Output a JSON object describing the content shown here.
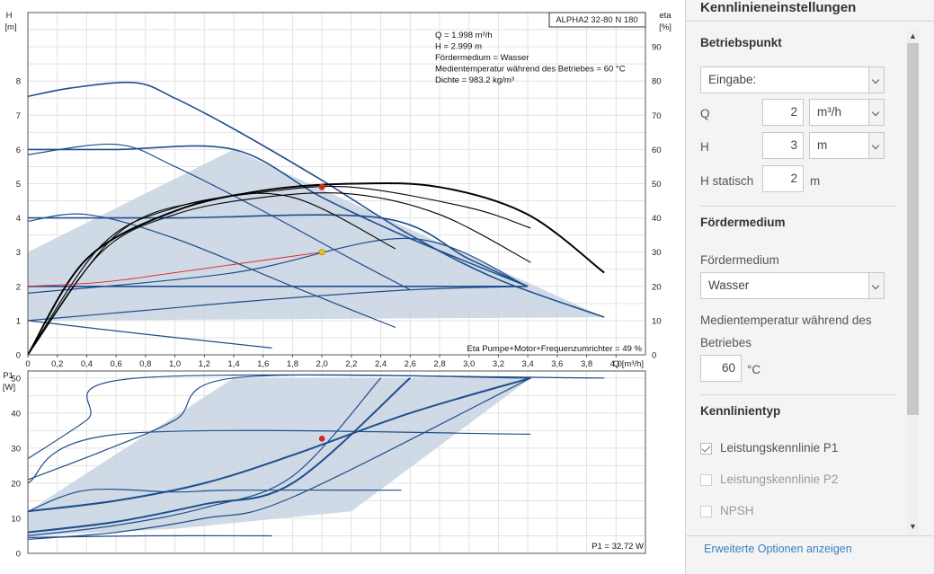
{
  "chart_data": [
    {
      "type": "line",
      "title": "ALPHA2 32-80 N 180",
      "xlabel": "Q [m³/h]",
      "ylabel": "H [m]",
      "ylabel_line1": "H",
      "ylabel_line2": "[m]",
      "y2label": "eta [%]",
      "y2label_line1": "eta",
      "y2label_line2": "[%]",
      "xlim": [
        0,
        4.2
      ],
      "ylim": [
        0,
        10
      ],
      "y2lim": [
        0,
        100
      ],
      "x_ticks": [
        "0",
        "0,2",
        "0,4",
        "0,6",
        "0,8",
        "1,0",
        "1,2",
        "1,4",
        "1,6",
        "1,8",
        "2,0",
        "2,2",
        "2,4",
        "2,6",
        "2,8",
        "3,0",
        "3,2",
        "3,4",
        "3,6",
        "3,8",
        "4,0"
      ],
      "y_ticks": [
        "0",
        "1",
        "2",
        "3",
        "4",
        "5",
        "6",
        "7",
        "8"
      ],
      "y2_ticks": [
        "0",
        "10",
        "20",
        "30",
        "40",
        "50",
        "60",
        "70",
        "80",
        "90"
      ],
      "grid": true,
      "info_lines": [
        "Q = 1.998 m³/h",
        "H = 2.999 m",
        "Fördermedium = Wasser",
        "Medientemperatur während des Betriebes = 60 °C",
        "Dichte = 983.2 kg/m³"
      ],
      "footnote": "Eta Pumpe+Motor+Frequenzumrichter = 49 %",
      "shaded_region": [
        [
          0,
          3.0
        ],
        [
          1.4,
          6.0
        ],
        [
          3.92,
          1.1
        ],
        [
          0,
          1.0
        ]
      ],
      "series": [
        {
          "role": "max curve",
          "x": [
            0,
            0.3,
            0.73,
            1.0,
            1.4,
            2.0,
            2.6,
            3.2,
            3.92
          ],
          "y": [
            7.55,
            7.8,
            7.95,
            7.5,
            6.6,
            5.1,
            3.5,
            2.2,
            1.1
          ]
        },
        {
          "role": "constant curve 6",
          "x": [
            0,
            0.6,
            1.4,
            2.0,
            2.6,
            3.4
          ],
          "y": [
            6.0,
            6.0,
            6.0,
            4.6,
            3.4,
            2.0
          ]
        },
        {
          "role": "proportional curve",
          "x": [
            0,
            0.6,
            1.0,
            1.6,
            2.2,
            2.6
          ],
          "y": [
            5.85,
            6.15,
            5.5,
            4.2,
            2.8,
            1.9
          ]
        },
        {
          "role": "constant curve 4",
          "x": [
            0,
            1.0,
            2.4,
            3.0,
            3.4
          ],
          "y": [
            4.0,
            4.0,
            4.0,
            2.8,
            2.0
          ]
        },
        {
          "role": "proportional curve 2",
          "x": [
            0,
            0.4,
            1.0,
            1.8,
            2.5
          ],
          "y": [
            3.9,
            4.1,
            3.4,
            2.0,
            0.8
          ]
        },
        {
          "role": "constant curve 2",
          "x": [
            0,
            1.4,
            3.4
          ],
          "y": [
            2.0,
            2.0,
            2.0
          ]
        },
        {
          "role": "proportional curve 3",
          "x": [
            0,
            1.4,
            2.6,
            3.4
          ],
          "y": [
            1.8,
            2.4,
            3.4,
            2.0
          ]
        },
        {
          "role": "min curve",
          "x": [
            0,
            0.8,
            1.6,
            2.6,
            3.4
          ],
          "y": [
            1.0,
            1.3,
            1.6,
            1.9,
            2.0
          ]
        },
        {
          "role": "low curve",
          "x": [
            0,
            0.8,
            1.66
          ],
          "y": [
            1.0,
            0.6,
            0.2
          ]
        },
        {
          "role": "efficiency max",
          "x": [
            0,
            0.4,
            1.0,
            1.6,
            2.2,
            2.8,
            3.4,
            3.92
          ],
          "y": [
            0,
            2.8,
            4.2,
            4.8,
            5.0,
            4.9,
            4.1,
            2.4
          ]
        },
        {
          "role": "efficiency 2",
          "x": [
            0,
            0.5,
            1.0,
            1.6,
            2.2,
            3.0,
            3.42
          ],
          "y": [
            0,
            3.2,
            4.3,
            4.75,
            4.9,
            4.3,
            3.7
          ]
        },
        {
          "role": "efficiency 3",
          "x": [
            0,
            0.5,
            1.0,
            1.6,
            2.2,
            2.8,
            3.42
          ],
          "y": [
            0,
            3.0,
            4.1,
            4.6,
            4.7,
            4.1,
            2.7
          ]
        },
        {
          "role": "efficiency 4",
          "x": [
            0,
            0.6,
            1.2,
            1.8,
            2.5
          ],
          "y": [
            0,
            3.5,
            4.5,
            4.6,
            3.1
          ]
        },
        {
          "role": "system curve",
          "x": [
            0,
            0.5,
            1.0,
            1.5,
            2.0
          ],
          "y": [
            2.0,
            2.12,
            2.4,
            2.7,
            3.0
          ]
        }
      ],
      "points": [
        {
          "role": "optimum",
          "x": 2.0,
          "y": 4.9,
          "color": "#e02020"
        },
        {
          "role": "operating point",
          "x": 2.0,
          "y": 3.0,
          "color": "#f0c020"
        }
      ]
    },
    {
      "type": "line",
      "xlim": [
        0,
        4.2
      ],
      "ylim": [
        0,
        52
      ],
      "ylabel": "P1 [W]",
      "ylabel_line1": "P1",
      "ylabel_line2": "[W]",
      "y_ticks": [
        "0",
        "10",
        "20",
        "30",
        "40",
        "50"
      ],
      "grid": true,
      "footnote": "P1 = 32.72 W",
      "shaded_region": [
        [
          0,
          5
        ],
        [
          0,
          12
        ],
        [
          1.4,
          50
        ],
        [
          3.42,
          50
        ],
        [
          2.2,
          12
        ],
        [
          1.0,
          7
        ]
      ],
      "series": [
        {
          "role": "max power",
          "x": [
            0,
            0.4,
            0.75,
            3.92
          ],
          "y": [
            27,
            38,
            50,
            50
          ]
        },
        {
          "role": "power 2",
          "x": [
            0,
            0.5,
            1.0,
            1.4,
            3.42
          ],
          "y": [
            21,
            29,
            38,
            50,
            50
          ]
        },
        {
          "role": "power 3",
          "x": [
            0,
            0.6,
            1.2,
            1.8,
            2.6,
            3.42
          ],
          "y": [
            12,
            15,
            20,
            28,
            40,
            50
          ]
        },
        {
          "role": "power 4",
          "x": [
            0,
            0.6,
            1.2,
            1.8,
            2.6
          ],
          "y": [
            6,
            9,
            14,
            20,
            50
          ]
        },
        {
          "role": "power 5",
          "x": [
            0,
            0.6,
            1.2,
            1.8,
            2.4
          ],
          "y": [
            5,
            8,
            13,
            22,
            50
          ]
        },
        {
          "role": "power 6",
          "x": [
            0,
            0.6,
            1.2,
            1.8,
            3.42
          ],
          "y": [
            4,
            6,
            10,
            16,
            50
          ]
        },
        {
          "role": "constant 34",
          "x": [
            0,
            0.62,
            3.42
          ],
          "y": [
            20,
            34,
            34
          ]
        },
        {
          "role": "constant 18",
          "x": [
            0,
            0.4,
            1.0,
            1.4,
            2.54
          ],
          "y": [
            12,
            18,
            17.5,
            18,
            18
          ]
        },
        {
          "role": "min power",
          "x": [
            0,
            0.8,
            1.66
          ],
          "y": [
            4.5,
            5,
            5
          ]
        }
      ],
      "points": [
        {
          "role": "operating point",
          "x": 2.0,
          "y": 32.7,
          "color": "#e02020"
        }
      ]
    }
  ],
  "panel": {
    "title": "Kennlinieneinstellungen",
    "betriebspunkt": {
      "title": "Betriebspunkt",
      "mode_select": "Eingabe:",
      "q_label": "Q",
      "q_value": "2",
      "q_unit": "m³/h",
      "h_label": "H",
      "h_value": "3",
      "h_unit": "m",
      "hstat_label": "H statisch",
      "hstat_value": "2",
      "hstat_unit": "m"
    },
    "medium": {
      "title": "Fördermedium",
      "medium_label": "Fördermedium",
      "medium_value": "Wasser",
      "temp_label_line1": "Medientemperatur während des",
      "temp_label_line2": "Betriebes",
      "temp_value": "60",
      "temp_unit": "°C"
    },
    "kennlinientyp": {
      "title": "Kennlinientyp",
      "items": [
        {
          "label": "Leistungskennlinie P1",
          "checked": true
        },
        {
          "label": "Leistungskennlinie P2",
          "checked": false
        },
        {
          "label": "NPSH",
          "checked": false
        }
      ]
    },
    "more_link": "Erweiterte Optionen anzeigen",
    "colors": {
      "accent_link": "#3a7dbf",
      "curve": "#1f4e8c",
      "shade": "#c7d3e2"
    }
  }
}
